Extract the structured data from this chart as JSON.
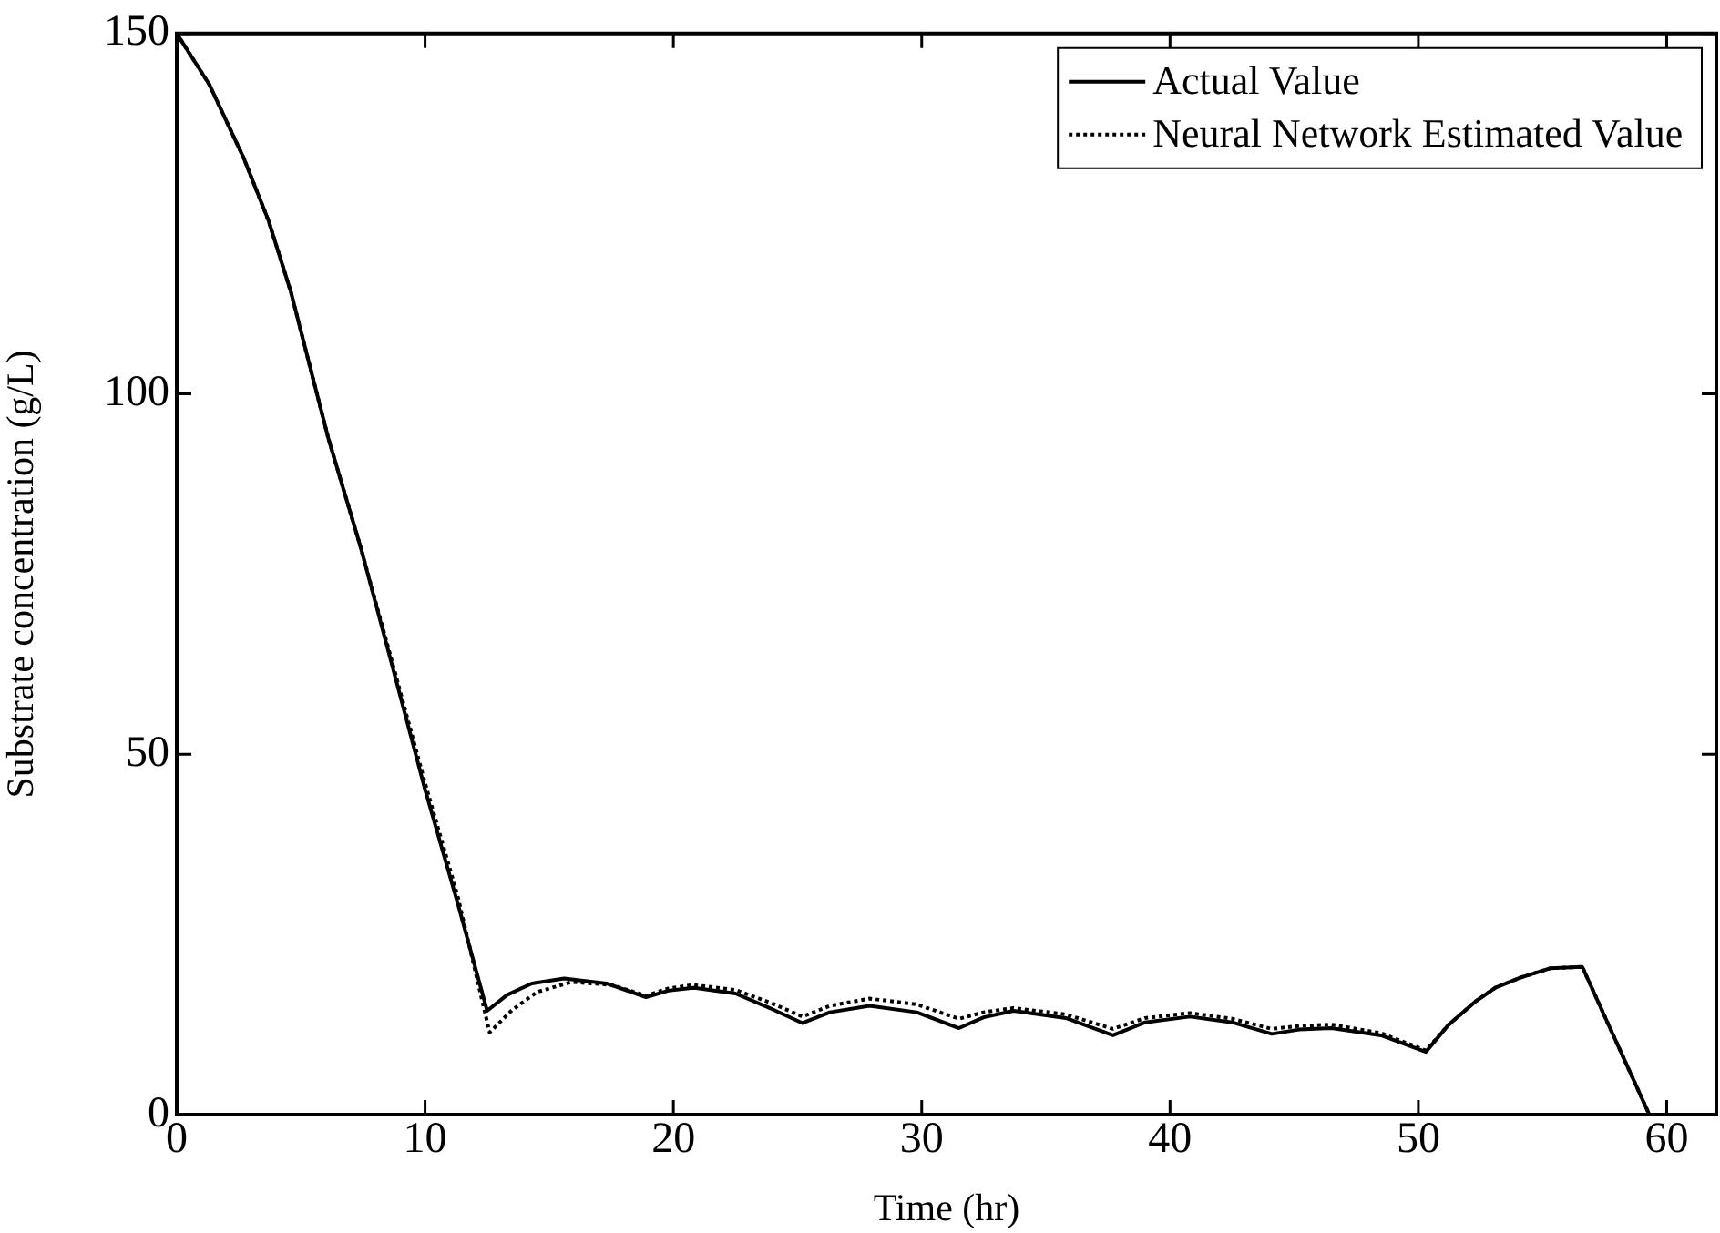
{
  "chart_data": {
    "type": "line",
    "xlabel": "Time (hr)",
    "ylabel": "Substrate concentration (g/L)",
    "xlim": [
      0,
      62
    ],
    "ylim": [
      0,
      150
    ],
    "xticks": [
      0,
      10,
      20,
      30,
      40,
      50,
      60
    ],
    "yticks": [
      0,
      50,
      100,
      150
    ],
    "grid": false,
    "legend": "top right",
    "series": [
      {
        "name": "Actual Value",
        "color": "#000000",
        "line_style": "solid",
        "x": [
          0,
          1.3,
          2.7,
          3.7,
          4.6,
          6.1,
          7.4,
          8.7,
          10,
          11.3,
          12.5,
          13.3,
          14.3,
          15.6,
          17.3,
          18.9,
          19.8,
          20.8,
          22.5,
          24,
          25.2,
          26.3,
          27.9,
          29.8,
          31.5,
          32.5,
          33.7,
          35.8,
          37.7,
          39,
          40.8,
          42.5,
          44.1,
          45.2,
          46.5,
          48.5,
          50.3,
          51.2,
          52.3,
          53.1,
          54.1,
          55.3,
          56.6,
          59.3,
          62
        ],
        "values": [
          150,
          143,
          132.7,
          124,
          114.1,
          93.9,
          78.8,
          62,
          45.1,
          29.5,
          14.4,
          16.6,
          18.2,
          18.9,
          18.2,
          16.3,
          17.2,
          17.6,
          16.8,
          14.6,
          12.7,
          14.2,
          15.1,
          14.2,
          12,
          13.5,
          14.4,
          13.4,
          11,
          12.8,
          13.6,
          12.8,
          11.2,
          11.8,
          12,
          11,
          8.7,
          12.4,
          15.7,
          17.6,
          19,
          20.3,
          20.5,
          0,
          0
        ]
      },
      {
        "name": "Neural Network Estimated Value",
        "color": "#000000",
        "line_style": "dotted",
        "x": [
          0,
          1.3,
          2.7,
          3.7,
          4.6,
          6.1,
          7.4,
          8.7,
          10,
          11.3,
          12.6,
          13.5,
          14.5,
          15.9,
          17.5,
          18.9,
          19.8,
          20.8,
          22.5,
          24,
          25.2,
          26.3,
          27.9,
          29.8,
          31.5,
          32.5,
          33.7,
          35.8,
          37.7,
          39,
          40.8,
          42.5,
          44.1,
          45.2,
          46.5,
          48.5,
          50.3,
          51.2,
          52.3,
          53.1,
          54.1,
          55.3,
          56.6,
          59.3,
          62
        ],
        "values": [
          150,
          143,
          132.7,
          124,
          114.1,
          93.9,
          78.8,
          62.5,
          46,
          30.5,
          11.4,
          14.5,
          17,
          18.4,
          18,
          16.5,
          17.5,
          18,
          17.3,
          15.4,
          13.6,
          15.1,
          16.1,
          15.3,
          13.3,
          14.2,
          14.8,
          13.9,
          11.9,
          13.4,
          14.1,
          13.3,
          11.9,
          12.3,
          12.5,
          11.3,
          8.9,
          12.4,
          15.7,
          17.6,
          19,
          20.3,
          20.5,
          0,
          0
        ]
      }
    ]
  }
}
